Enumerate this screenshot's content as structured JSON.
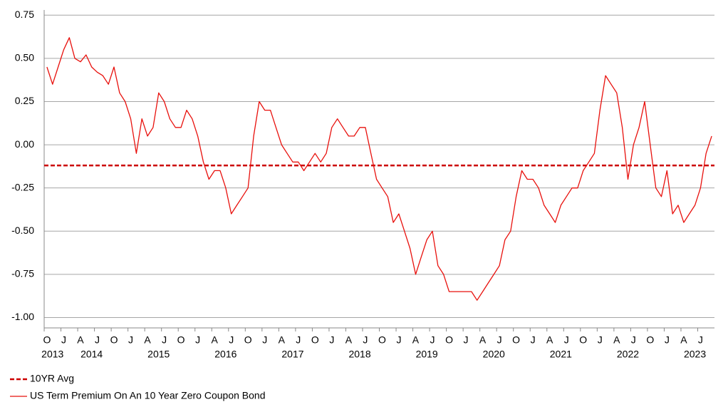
{
  "chart_data": {
    "type": "line",
    "x": [
      "2013-10",
      "2013-11",
      "2013-12",
      "2014-01",
      "2014-02",
      "2014-03",
      "2014-04",
      "2014-05",
      "2014-06",
      "2014-07",
      "2014-08",
      "2014-09",
      "2014-10",
      "2014-11",
      "2014-12",
      "2015-01",
      "2015-02",
      "2015-03",
      "2015-04",
      "2015-05",
      "2015-06",
      "2015-07",
      "2015-08",
      "2015-09",
      "2015-10",
      "2015-11",
      "2015-12",
      "2016-01",
      "2016-02",
      "2016-03",
      "2016-04",
      "2016-05",
      "2016-06",
      "2016-07",
      "2016-08",
      "2016-09",
      "2016-10",
      "2016-11",
      "2016-12",
      "2017-01",
      "2017-02",
      "2017-03",
      "2017-04",
      "2017-05",
      "2017-06",
      "2017-07",
      "2017-08",
      "2017-09",
      "2017-10",
      "2017-11",
      "2017-12",
      "2018-01",
      "2018-02",
      "2018-03",
      "2018-04",
      "2018-05",
      "2018-06",
      "2018-07",
      "2018-08",
      "2018-09",
      "2018-10",
      "2018-11",
      "2018-12",
      "2019-01",
      "2019-02",
      "2019-03",
      "2019-04",
      "2019-05",
      "2019-06",
      "2019-07",
      "2019-08",
      "2019-09",
      "2019-10",
      "2019-11",
      "2019-12",
      "2020-01",
      "2020-02",
      "2020-03",
      "2020-04",
      "2020-05",
      "2020-06",
      "2020-07",
      "2020-08",
      "2020-09",
      "2020-10",
      "2020-11",
      "2020-12",
      "2021-01",
      "2021-02",
      "2021-03",
      "2021-04",
      "2021-05",
      "2021-06",
      "2021-07",
      "2021-08",
      "2021-09",
      "2021-10",
      "2021-11",
      "2021-12",
      "2022-01",
      "2022-02",
      "2022-03",
      "2022-04",
      "2022-05",
      "2022-06",
      "2022-07",
      "2022-08",
      "2022-09",
      "2022-10",
      "2022-11",
      "2022-12",
      "2023-01",
      "2023-02",
      "2023-03",
      "2023-04",
      "2023-05",
      "2023-06",
      "2023-07",
      "2023-08",
      "2023-09"
    ],
    "series": [
      {
        "name": "US Term Premium On An 10 Year Zero Coupon Bond",
        "color": "#e8100c",
        "values": [
          0.45,
          0.35,
          0.45,
          0.55,
          0.62,
          0.5,
          0.48,
          0.52,
          0.45,
          0.42,
          0.4,
          0.35,
          0.45,
          0.3,
          0.25,
          0.15,
          -0.05,
          0.15,
          0.05,
          0.1,
          0.3,
          0.25,
          0.15,
          0.1,
          0.1,
          0.2,
          0.15,
          0.05,
          -0.1,
          -0.2,
          -0.15,
          -0.15,
          -0.25,
          -0.4,
          -0.35,
          -0.3,
          -0.25,
          0.05,
          0.25,
          0.2,
          0.2,
          0.1,
          0.0,
          -0.05,
          -0.1,
          -0.1,
          -0.15,
          -0.1,
          -0.05,
          -0.1,
          -0.05,
          0.1,
          0.15,
          0.1,
          0.05,
          0.05,
          0.1,
          0.1,
          -0.05,
          -0.2,
          -0.25,
          -0.3,
          -0.45,
          -0.4,
          -0.5,
          -0.6,
          -0.75,
          -0.65,
          -0.55,
          -0.5,
          -0.7,
          -0.75,
          -0.85,
          -0.85,
          -0.85,
          -0.85,
          -0.85,
          -0.9,
          -0.85,
          -0.8,
          -0.75,
          -0.7,
          -0.55,
          -0.5,
          -0.3,
          -0.15,
          -0.2,
          -0.2,
          -0.25,
          -0.35,
          -0.4,
          -0.45,
          -0.35,
          -0.3,
          -0.25,
          -0.25,
          -0.15,
          -0.1,
          -0.05,
          0.2,
          0.4,
          0.35,
          0.3,
          0.1,
          -0.2,
          0.0,
          0.1,
          0.25,
          0.0,
          -0.25,
          -0.3,
          -0.15,
          -0.4,
          -0.35,
          -0.45,
          -0.4,
          -0.35,
          -0.25,
          -0.05,
          0.05
        ]
      }
    ],
    "reference_lines": [
      {
        "name": "10YR Avg",
        "value": -0.12,
        "color": "#cc0000",
        "style": "dashed"
      }
    ],
    "xlim": [
      "2013-10",
      "2023-10"
    ],
    "xticks": [
      {
        "value": "2013-10",
        "label": "O"
      },
      {
        "value": "2014-01",
        "label": "J"
      },
      {
        "value": "2014-04",
        "label": "A"
      },
      {
        "value": "2014-07",
        "label": "J"
      },
      {
        "value": "2014-10",
        "label": "O"
      },
      {
        "value": "2015-01",
        "label": "J"
      },
      {
        "value": "2015-04",
        "label": "A"
      },
      {
        "value": "2015-07",
        "label": "J"
      },
      {
        "value": "2015-10",
        "label": "O"
      },
      {
        "value": "2016-01",
        "label": "J"
      },
      {
        "value": "2016-04",
        "label": "A"
      },
      {
        "value": "2016-07",
        "label": "J"
      },
      {
        "value": "2016-10",
        "label": "O"
      },
      {
        "value": "2017-01",
        "label": "J"
      },
      {
        "value": "2017-04",
        "label": "A"
      },
      {
        "value": "2017-07",
        "label": "J"
      },
      {
        "value": "2017-10",
        "label": "O"
      },
      {
        "value": "2018-01",
        "label": "J"
      },
      {
        "value": "2018-04",
        "label": "A"
      },
      {
        "value": "2018-07",
        "label": "J"
      },
      {
        "value": "2018-10",
        "label": "O"
      },
      {
        "value": "2019-01",
        "label": "J"
      },
      {
        "value": "2019-04",
        "label": "A"
      },
      {
        "value": "2019-07",
        "label": "J"
      },
      {
        "value": "2019-10",
        "label": "O"
      },
      {
        "value": "2020-01",
        "label": "J"
      },
      {
        "value": "2020-04",
        "label": "A"
      },
      {
        "value": "2020-07",
        "label": "J"
      },
      {
        "value": "2020-10",
        "label": "O"
      },
      {
        "value": "2021-01",
        "label": "J"
      },
      {
        "value": "2021-04",
        "label": "A"
      },
      {
        "value": "2021-07",
        "label": "J"
      },
      {
        "value": "2021-10",
        "label": "O"
      },
      {
        "value": "2022-01",
        "label": "J"
      },
      {
        "value": "2022-04",
        "label": "A"
      },
      {
        "value": "2022-07",
        "label": "J"
      },
      {
        "value": "2022-10",
        "label": "O"
      },
      {
        "value": "2023-01",
        "label": "J"
      },
      {
        "value": "2023-04",
        "label": "A"
      },
      {
        "value": "2023-07",
        "label": "J"
      }
    ],
    "xtick_years": [
      {
        "value": "2013-11",
        "label": "2013"
      },
      {
        "value": "2014-06",
        "label": "2014"
      },
      {
        "value": "2015-06",
        "label": "2015"
      },
      {
        "value": "2016-06",
        "label": "2016"
      },
      {
        "value": "2017-06",
        "label": "2017"
      },
      {
        "value": "2018-06",
        "label": "2018"
      },
      {
        "value": "2019-06",
        "label": "2019"
      },
      {
        "value": "2020-06",
        "label": "2020"
      },
      {
        "value": "2021-06",
        "label": "2021"
      },
      {
        "value": "2022-06",
        "label": "2022"
      },
      {
        "value": "2023-06",
        "label": "2023"
      }
    ],
    "ylim": [
      -1.06,
      0.78
    ],
    "yticks": [
      0.75,
      {
        "value": 0.5,
        "label": "0.50"
      },
      0.25,
      {
        "value": 0,
        "label": "0.00"
      },
      -0.25,
      {
        "value": -0.5,
        "label": "-0.50"
      },
      -0.75,
      {
        "value": -1,
        "label": "-1.00"
      }
    ],
    "grid": true,
    "legend": "bottom-left"
  }
}
